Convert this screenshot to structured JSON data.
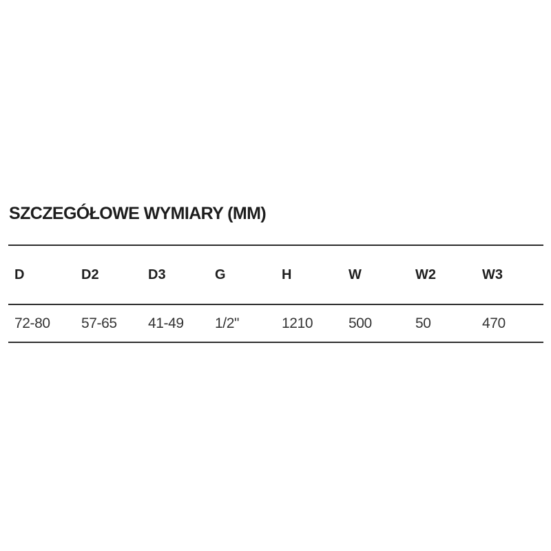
{
  "page": {
    "background_color": "#ffffff",
    "text_color": "#1d1d1d",
    "rule_color": "#2c2c2c"
  },
  "section": {
    "title": "SZCZEGÓŁOWE WYMIARY (MM)"
  },
  "dimensions_table": {
    "headers": [
      "D",
      "D2",
      "D3",
      "G",
      "H",
      "W",
      "W2",
      "W3"
    ],
    "rows": [
      [
        "72-80",
        "57-65",
        "41-49",
        "1/2\"",
        "1210",
        "500",
        "50",
        "470"
      ]
    ]
  }
}
